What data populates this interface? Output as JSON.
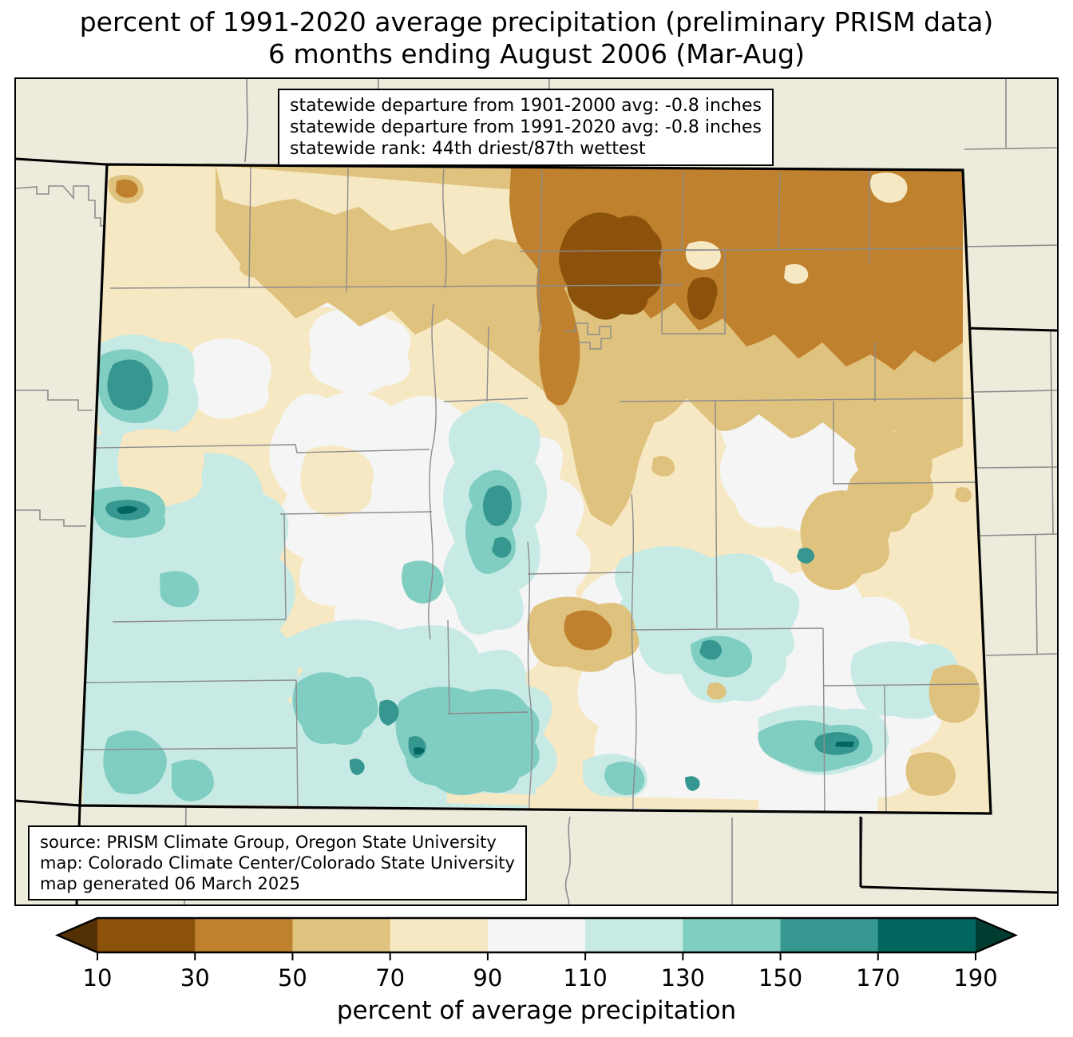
{
  "title": {
    "line1": "percent of 1991-2020 average precipitation (preliminary PRISM data)",
    "line2": "6 months ending August 2006 (Mar-Aug)"
  },
  "stats_box": {
    "line1": "statewide departure from 1901-2000 avg: -0.8 inches",
    "line2": "statewide departure from 1991-2020 avg: -0.8 inches",
    "line3": "statewide rank: 44th driest/87th wettest"
  },
  "source_box": {
    "line1": "source: PRISM Climate Group, Oregon State University",
    "line2": "map: Colorado Climate Center/Colorado State University",
    "line3": "map generated 06 March 2025"
  },
  "colorbar": {
    "label": "percent of average precipitation",
    "ticks": [
      "10",
      "30",
      "50",
      "70",
      "90",
      "110",
      "130",
      "150",
      "170",
      "190"
    ],
    "under_color": "#543005",
    "over_color": "#003c30",
    "segment_colors": [
      "#8c510a",
      "#bf812d",
      "#dfc27d",
      "#f6e8c3",
      "#f5f5f5",
      "#c7eae5",
      "#80cdc1",
      "#35978f",
      "#01665e"
    ]
  },
  "palette": {
    "dark_brown": "#8c510a",
    "brown": "#bf812d",
    "tan": "#dfc27d",
    "cream": "#f6e8c3",
    "white": "#f5f5f5",
    "pale_teal": "#c7eae5",
    "teal": "#80cdc1",
    "dark_teal": "#35978f",
    "deepest_teal": "#01665e",
    "outside_state": "#ECEBDC",
    "county_line": "#8c8c8c",
    "state_line": "#000000"
  }
}
